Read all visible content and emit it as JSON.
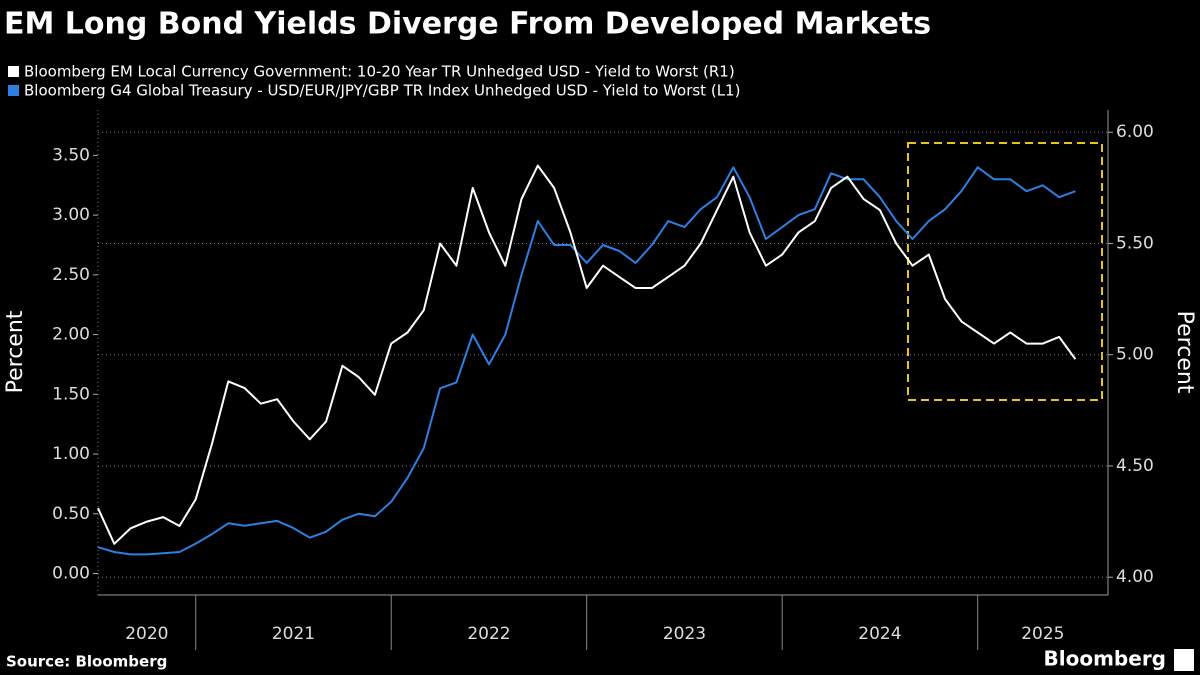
{
  "chart_data": {
    "type": "line",
    "title": "EM Long Bond Yields Diverge From Developed Markets",
    "source": "Source: Bloomberg",
    "brand": "Bloomberg",
    "ylabel": "Percent",
    "y2label": "Percent",
    "x": [
      "2020-07",
      "2020-08",
      "2020-09",
      "2020-10",
      "2020-11",
      "2020-12",
      "2021-01",
      "2021-02",
      "2021-03",
      "2021-04",
      "2021-05",
      "2021-06",
      "2021-07",
      "2021-08",
      "2021-09",
      "2021-10",
      "2021-11",
      "2021-12",
      "2022-01",
      "2022-02",
      "2022-03",
      "2022-04",
      "2022-05",
      "2022-06",
      "2022-07",
      "2022-08",
      "2022-09",
      "2022-10",
      "2022-11",
      "2022-12",
      "2023-01",
      "2023-02",
      "2023-03",
      "2023-04",
      "2023-05",
      "2023-06",
      "2023-07",
      "2023-08",
      "2023-09",
      "2023-10",
      "2023-11",
      "2023-12",
      "2024-01",
      "2024-02",
      "2024-03",
      "2024-04",
      "2024-05",
      "2024-06",
      "2024-07",
      "2024-08",
      "2024-09",
      "2024-10",
      "2024-11",
      "2024-12",
      "2025-01",
      "2025-02",
      "2025-03",
      "2025-04",
      "2025-05",
      "2025-06",
      "2025-07"
    ],
    "series": [
      {
        "name": "Bloomberg EM Local Currency Government: 10-20 Year TR Unhedged USD - Yield to Worst (R1)",
        "color": "#ffffff",
        "axis": "y2",
        "values": [
          4.31,
          4.15,
          4.22,
          4.25,
          4.27,
          4.23,
          4.35,
          4.6,
          4.88,
          4.85,
          4.78,
          4.8,
          4.7,
          4.62,
          4.7,
          4.95,
          4.9,
          4.82,
          5.05,
          5.1,
          5.2,
          5.5,
          5.4,
          5.75,
          5.55,
          5.4,
          5.7,
          5.85,
          5.75,
          5.55,
          5.3,
          5.4,
          5.35,
          5.3,
          5.3,
          5.35,
          5.4,
          5.5,
          5.65,
          5.8,
          5.55,
          5.4,
          5.45,
          5.55,
          5.6,
          5.75,
          5.8,
          5.7,
          5.65,
          5.5,
          5.4,
          5.45,
          5.25,
          5.15,
          5.1,
          5.05,
          5.1,
          5.05,
          5.05,
          5.08,
          4.98
        ]
      },
      {
        "name": "Bloomberg G4 Global Treasury - USD/EUR/JPY/GBP TR Index Unhedged USD - Yield to Worst (L1)",
        "color": "#2d7fe0",
        "axis": "y",
        "values": [
          0.22,
          0.18,
          0.16,
          0.16,
          0.17,
          0.18,
          0.25,
          0.33,
          0.42,
          0.4,
          0.42,
          0.44,
          0.38,
          0.3,
          0.35,
          0.45,
          0.5,
          0.48,
          0.6,
          0.8,
          1.05,
          1.55,
          1.6,
          2.0,
          1.75,
          2.0,
          2.5,
          2.95,
          2.75,
          2.75,
          2.6,
          2.75,
          2.7,
          2.6,
          2.75,
          2.95,
          2.9,
          3.05,
          3.15,
          3.4,
          3.15,
          2.8,
          2.9,
          3.0,
          3.05,
          3.35,
          3.3,
          3.3,
          3.15,
          2.95,
          2.8,
          2.95,
          3.05,
          3.2,
          3.4,
          3.3,
          3.3,
          3.2,
          3.25,
          3.15,
          3.2
        ]
      }
    ],
    "xlim": [
      "2020-07",
      "2025-09"
    ],
    "xticks": [
      2020,
      2021,
      2022,
      2023,
      2024,
      2025
    ],
    "ylim": [
      -0.18,
      3.88
    ],
    "yticks": [
      {
        "value": 0,
        "label": "0.00"
      },
      {
        "value": 0.5,
        "label": "0.50"
      },
      {
        "value": 1,
        "label": "1.00"
      },
      {
        "value": 1.5,
        "label": "1.50"
      },
      {
        "value": 2,
        "label": "2.00"
      },
      {
        "value": 2.5,
        "label": "2.50"
      },
      {
        "value": 3,
        "label": "3.00"
      },
      {
        "value": 3.5,
        "label": "3.50"
      }
    ],
    "y2lim": [
      3.92,
      6.1
    ],
    "y2ticks": [
      {
        "value": 4,
        "label": "4.00"
      },
      {
        "value": 4.5,
        "label": "4.50"
      },
      {
        "value": 5,
        "label": "5.00"
      },
      {
        "value": 5.5,
        "label": "5.50"
      },
      {
        "value": 6,
        "label": "6.00"
      }
    ],
    "grid": true
  }
}
